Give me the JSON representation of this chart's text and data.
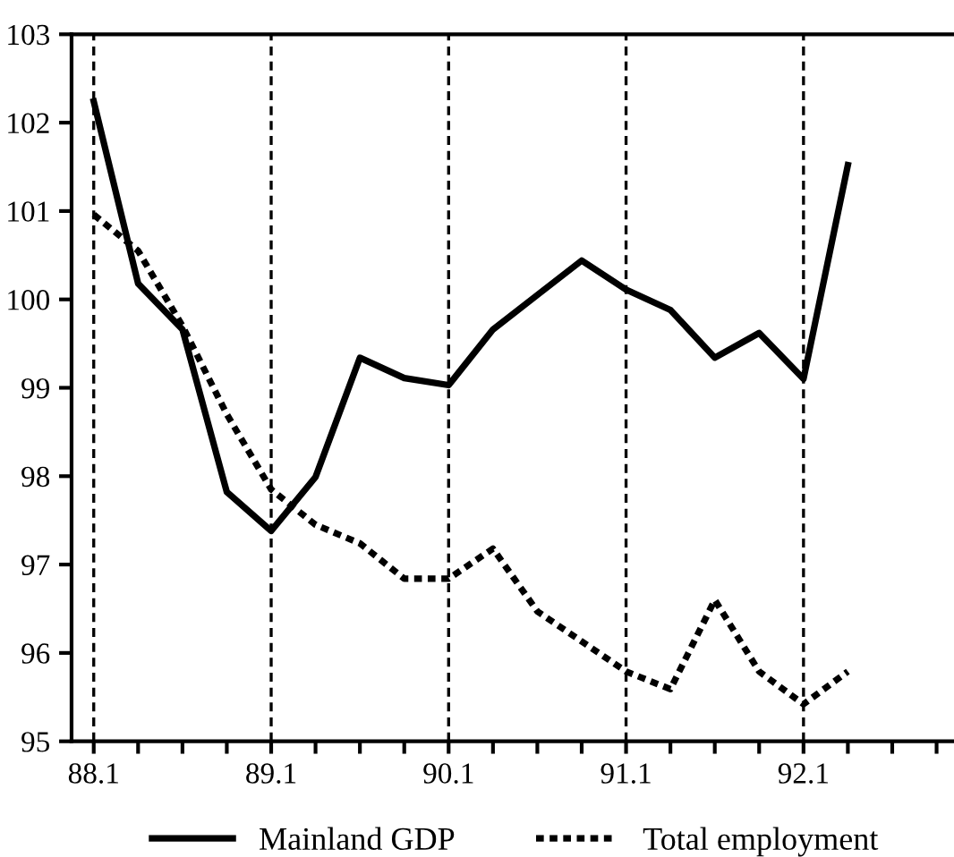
{
  "chart_data": {
    "type": "line",
    "categories": [
      "88.1",
      null,
      null,
      null,
      "89.1",
      null,
      null,
      null,
      "90.1",
      null,
      null,
      null,
      "91.1",
      null,
      null,
      null,
      "92.1",
      null,
      null,
      null
    ],
    "series": [
      {
        "name": "Mainland GDP",
        "color": "#000000",
        "line_style": "solid",
        "values": [
          102.24,
          100.18,
          99.66,
          97.82,
          97.38,
          97.99,
          99.34,
          99.11,
          99.03,
          99.66,
          100.05,
          100.44,
          100.11,
          99.88,
          99.34,
          99.62,
          99.1,
          101.52,
          null,
          null
        ]
      },
      {
        "name": "Total employment",
        "color": "#000000",
        "line_style": "dotted",
        "values": [
          100.96,
          100.55,
          99.7,
          98.7,
          97.85,
          97.45,
          97.24,
          96.84,
          96.84,
          97.18,
          96.47,
          96.13,
          95.79,
          95.59,
          96.6,
          95.79,
          95.42,
          95.79,
          null,
          null
        ]
      }
    ],
    "ylim": [
      95,
      103
    ],
    "yticks": [
      95,
      96,
      97,
      98,
      99,
      100,
      101,
      102,
      103
    ],
    "ref_lines": [
      {
        "axis": "x",
        "value": "88.1",
        "line_style": "dashed",
        "color": "#000000"
      },
      {
        "axis": "x",
        "value": "89.1",
        "line_style": "dashed",
        "color": "#000000"
      },
      {
        "axis": "x",
        "value": "90.1",
        "line_style": "dashed",
        "color": "#000000"
      },
      {
        "axis": "x",
        "value": "91.1",
        "line_style": "dashed",
        "color": "#000000"
      },
      {
        "axis": "x",
        "value": "92.1",
        "line_style": "dashed",
        "color": "#000000"
      }
    ],
    "legend": "bottom",
    "grid": false
  }
}
